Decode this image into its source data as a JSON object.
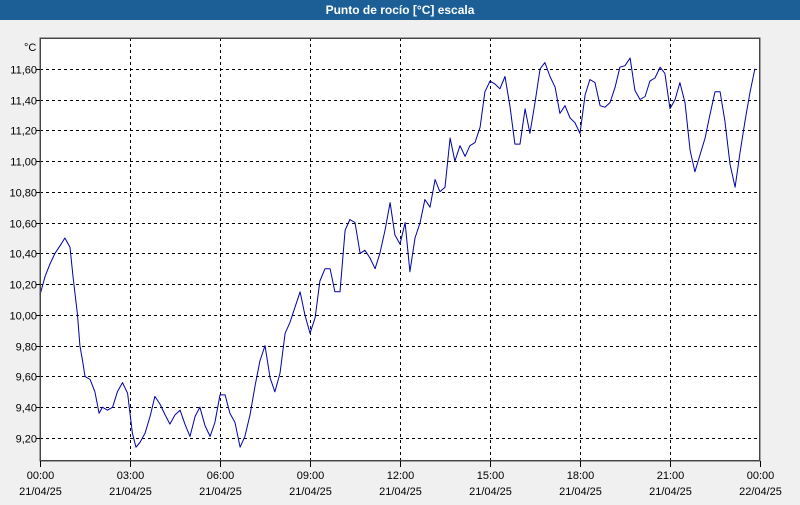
{
  "window": {
    "title": "Punto de rocío [°C] escala"
  },
  "colors": {
    "title_bar": "#1b5f96",
    "series": "#0000aa",
    "background": "#f0f0f0",
    "plot_background": "#ffffff"
  },
  "chart_data": {
    "type": "line",
    "title": "Punto de rocío [°C] escala",
    "ylabel": "°C",
    "xlabel": "",
    "grid": true,
    "ylim": [
      9.05,
      11.8
    ],
    "xlim": [
      0,
      24
    ],
    "y_ticks": [
      9.2,
      9.4,
      9.6,
      9.8,
      10.0,
      10.2,
      10.4,
      10.6,
      10.8,
      11.0,
      11.2,
      11.4,
      11.6
    ],
    "y_tick_labels": [
      "9,20",
      "9,40",
      "9,60",
      "9,80",
      "10,00",
      "10,20",
      "10,40",
      "10,60",
      "10,80",
      "11,00",
      "11,20",
      "11,40",
      "11,60"
    ],
    "x_ticks": [
      {
        "hour": 0,
        "time": "00:00",
        "date": "21/04/25"
      },
      {
        "hour": 3,
        "time": "03:00",
        "date": "21/04/25"
      },
      {
        "hour": 6,
        "time": "06:00",
        "date": "21/04/25"
      },
      {
        "hour": 9,
        "time": "09:00",
        "date": "21/04/25"
      },
      {
        "hour": 12,
        "time": "12:00",
        "date": "21/04/25"
      },
      {
        "hour": 15,
        "time": "15:00",
        "date": "21/04/25"
      },
      {
        "hour": 18,
        "time": "18:00",
        "date": "21/04/25"
      },
      {
        "hour": 21,
        "time": "21:00",
        "date": "21/04/25"
      },
      {
        "hour": 24,
        "time": "00:00",
        "date": "22/04/25"
      }
    ],
    "series": [
      {
        "points": [
          [
            0.0,
            10.13
          ],
          [
            0.17,
            10.25
          ],
          [
            0.33,
            10.33
          ],
          [
            0.5,
            10.4
          ],
          [
            0.67,
            10.45
          ],
          [
            0.83,
            10.5
          ],
          [
            1.0,
            10.44
          ],
          [
            1.1,
            10.25
          ],
          [
            1.25,
            10.0
          ],
          [
            1.33,
            9.8
          ],
          [
            1.42,
            9.7
          ],
          [
            1.5,
            9.6
          ],
          [
            1.67,
            9.58
          ],
          [
            1.83,
            9.5
          ],
          [
            1.97,
            9.36
          ],
          [
            2.08,
            9.4
          ],
          [
            2.25,
            9.38
          ],
          [
            2.42,
            9.4
          ],
          [
            2.58,
            9.5
          ],
          [
            2.75,
            9.56
          ],
          [
            2.92,
            9.49
          ],
          [
            3.0,
            9.36
          ],
          [
            3.08,
            9.23
          ],
          [
            3.2,
            9.14
          ],
          [
            3.33,
            9.17
          ],
          [
            3.5,
            9.23
          ],
          [
            3.67,
            9.34
          ],
          [
            3.83,
            9.47
          ],
          [
            4.0,
            9.42
          ],
          [
            4.17,
            9.35
          ],
          [
            4.33,
            9.29
          ],
          [
            4.5,
            9.35
          ],
          [
            4.67,
            9.38
          ],
          [
            4.83,
            9.29
          ],
          [
            5.0,
            9.21
          ],
          [
            5.17,
            9.34
          ],
          [
            5.33,
            9.4
          ],
          [
            5.5,
            9.28
          ],
          [
            5.67,
            9.21
          ],
          [
            5.83,
            9.3
          ],
          [
            6.0,
            9.48
          ],
          [
            6.17,
            9.48
          ],
          [
            6.33,
            9.36
          ],
          [
            6.5,
            9.3
          ],
          [
            6.67,
            9.14
          ],
          [
            6.83,
            9.21
          ],
          [
            7.0,
            9.35
          ],
          [
            7.17,
            9.54
          ],
          [
            7.33,
            9.7
          ],
          [
            7.5,
            9.8
          ],
          [
            7.67,
            9.59
          ],
          [
            7.83,
            9.5
          ],
          [
            8.0,
            9.62
          ],
          [
            8.17,
            9.88
          ],
          [
            8.33,
            9.95
          ],
          [
            8.5,
            10.05
          ],
          [
            8.67,
            10.15
          ],
          [
            8.83,
            10.0
          ],
          [
            9.0,
            9.88
          ],
          [
            9.17,
            9.98
          ],
          [
            9.33,
            10.22
          ],
          [
            9.5,
            10.3
          ],
          [
            9.67,
            10.3
          ],
          [
            9.83,
            10.15
          ],
          [
            10.0,
            10.15
          ],
          [
            10.17,
            10.55
          ],
          [
            10.33,
            10.62
          ],
          [
            10.5,
            10.6
          ],
          [
            10.67,
            10.4
          ],
          [
            10.83,
            10.42
          ],
          [
            11.0,
            10.37
          ],
          [
            11.17,
            10.3
          ],
          [
            11.33,
            10.4
          ],
          [
            11.5,
            10.55
          ],
          [
            11.67,
            10.73
          ],
          [
            11.83,
            10.52
          ],
          [
            12.0,
            10.46
          ],
          [
            12.17,
            10.6
          ],
          [
            12.33,
            10.28
          ],
          [
            12.5,
            10.5
          ],
          [
            12.67,
            10.6
          ],
          [
            12.83,
            10.75
          ],
          [
            13.0,
            10.7
          ],
          [
            13.17,
            10.88
          ],
          [
            13.33,
            10.8
          ],
          [
            13.5,
            10.83
          ],
          [
            13.67,
            11.15
          ],
          [
            13.83,
            11.0
          ],
          [
            14.0,
            11.1
          ],
          [
            14.17,
            11.03
          ],
          [
            14.33,
            11.1
          ],
          [
            14.5,
            11.12
          ],
          [
            14.67,
            11.22
          ],
          [
            14.83,
            11.45
          ],
          [
            15.0,
            11.52
          ],
          [
            15.17,
            11.5
          ],
          [
            15.33,
            11.47
          ],
          [
            15.5,
            11.55
          ],
          [
            15.67,
            11.35
          ],
          [
            15.83,
            11.11
          ],
          [
            16.0,
            11.11
          ],
          [
            16.17,
            11.34
          ],
          [
            16.33,
            11.18
          ],
          [
            16.5,
            11.38
          ],
          [
            16.67,
            11.6
          ],
          [
            16.83,
            11.64
          ],
          [
            17.0,
            11.55
          ],
          [
            17.17,
            11.48
          ],
          [
            17.33,
            11.31
          ],
          [
            17.5,
            11.36
          ],
          [
            17.67,
            11.28
          ],
          [
            17.83,
            11.25
          ],
          [
            18.0,
            11.18
          ],
          [
            18.17,
            11.43
          ],
          [
            18.33,
            11.53
          ],
          [
            18.5,
            11.51
          ],
          [
            18.67,
            11.36
          ],
          [
            18.83,
            11.35
          ],
          [
            19.0,
            11.38
          ],
          [
            19.17,
            11.48
          ],
          [
            19.33,
            11.61
          ],
          [
            19.5,
            11.62
          ],
          [
            19.67,
            11.67
          ],
          [
            19.83,
            11.46
          ],
          [
            20.0,
            11.4
          ],
          [
            20.17,
            11.42
          ],
          [
            20.33,
            11.52
          ],
          [
            20.5,
            11.54
          ],
          [
            20.67,
            11.61
          ],
          [
            20.83,
            11.57
          ],
          [
            21.0,
            11.34
          ],
          [
            21.17,
            11.4
          ],
          [
            21.33,
            11.51
          ],
          [
            21.5,
            11.38
          ],
          [
            21.67,
            11.07
          ],
          [
            21.83,
            10.93
          ],
          [
            22.0,
            11.04
          ],
          [
            22.17,
            11.15
          ],
          [
            22.33,
            11.3
          ],
          [
            22.5,
            11.45
          ],
          [
            22.67,
            11.45
          ],
          [
            22.83,
            11.26
          ],
          [
            23.0,
            10.98
          ],
          [
            23.17,
            10.83
          ],
          [
            23.33,
            11.05
          ],
          [
            23.5,
            11.26
          ],
          [
            23.67,
            11.45
          ],
          [
            23.83,
            11.6
          ]
        ]
      }
    ]
  }
}
